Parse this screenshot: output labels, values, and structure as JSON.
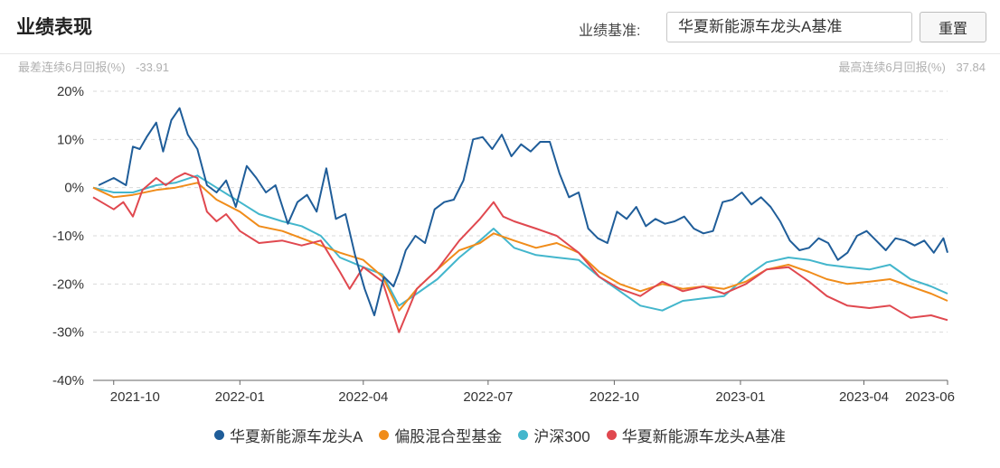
{
  "header": {
    "title": "业绩表现",
    "benchmark_label": "业绩基准:",
    "benchmark_value": "华夏新能源车龙头A基准",
    "reset_label": "重置"
  },
  "stats": {
    "worst_label": "最差连续6月回报(%)",
    "worst_value": "-33.91",
    "best_label": "最高连续6月回报(%)",
    "best_value": "37.84"
  },
  "chart_data": {
    "type": "line",
    "ylim": [
      -40,
      20
    ],
    "y_ticks": [
      20,
      10,
      0,
      -10,
      -20,
      -30,
      -40
    ],
    "y_tick_labels": [
      "20%",
      "10%",
      "0%",
      "-10%",
      "-20%",
      "-30%",
      "-40%"
    ],
    "xlim": [
      "2021-09-16",
      "2023-06-01"
    ],
    "x_ticks": [
      "2021-10-01",
      "2022-01-01",
      "2022-04-01",
      "2022-07-01",
      "2022-10-01",
      "2023-01-01",
      "2023-04-01",
      "2023-06-01"
    ],
    "x_tick_labels": [
      "2021-10",
      "2022-01",
      "2022-04",
      "2022-07",
      "2022-10",
      "2023-01",
      "2023-04",
      "2023-06"
    ],
    "grid": "horizontal-dashed",
    "legend_position": "bottom-center",
    "series": [
      {
        "name": "华夏新能源车龙头A",
        "color": "#1f5d99",
        "x": [
          "2021-09-20",
          "2021-10-01",
          "2021-10-10",
          "2021-10-15",
          "2021-10-20",
          "2021-10-25",
          "2021-11-01",
          "2021-11-06",
          "2021-11-12",
          "2021-11-18",
          "2021-11-24",
          "2021-12-01",
          "2021-12-08",
          "2021-12-15",
          "2021-12-22",
          "2021-12-29",
          "2022-01-06",
          "2022-01-13",
          "2022-01-20",
          "2022-01-27",
          "2022-02-05",
          "2022-02-12",
          "2022-02-19",
          "2022-02-26",
          "2022-03-05",
          "2022-03-12",
          "2022-03-19",
          "2022-03-26",
          "2022-04-02",
          "2022-04-09",
          "2022-04-16",
          "2022-04-23",
          "2022-04-27",
          "2022-05-02",
          "2022-05-09",
          "2022-05-16",
          "2022-05-23",
          "2022-05-30",
          "2022-06-06",
          "2022-06-13",
          "2022-06-20",
          "2022-06-27",
          "2022-07-04",
          "2022-07-11",
          "2022-07-18",
          "2022-07-25",
          "2022-08-01",
          "2022-08-08",
          "2022-08-15",
          "2022-08-22",
          "2022-08-29",
          "2022-09-05",
          "2022-09-12",
          "2022-09-19",
          "2022-09-26",
          "2022-10-03",
          "2022-10-10",
          "2022-10-17",
          "2022-10-24",
          "2022-10-31",
          "2022-11-07",
          "2022-11-14",
          "2022-11-21",
          "2022-11-28",
          "2022-12-05",
          "2022-12-12",
          "2022-12-19",
          "2022-12-26",
          "2023-01-02",
          "2023-01-09",
          "2023-01-16",
          "2023-01-23",
          "2023-01-30",
          "2023-02-06",
          "2023-02-13",
          "2023-02-20",
          "2023-02-27",
          "2023-03-06",
          "2023-03-13",
          "2023-03-20",
          "2023-03-27",
          "2023-04-03",
          "2023-04-10",
          "2023-04-17",
          "2023-04-24",
          "2023-05-01",
          "2023-05-08",
          "2023-05-15",
          "2023-05-22",
          "2023-05-29",
          "2023-06-01"
        ],
        "values": [
          0.5,
          2.0,
          0.5,
          8.5,
          8.0,
          10.5,
          13.5,
          7.5,
          14.0,
          16.5,
          11.0,
          8.0,
          0.5,
          -1.0,
          1.5,
          -4.0,
          4.5,
          2.0,
          -1.0,
          0.5,
          -7.5,
          -3.0,
          -1.5,
          -5.0,
          4.0,
          -6.5,
          -5.5,
          -14.0,
          -21.0,
          -26.5,
          -18.5,
          -20.5,
          -17.5,
          -13.0,
          -10.0,
          -11.5,
          -4.5,
          -3.0,
          -2.5,
          1.5,
          10.0,
          10.5,
          8.0,
          11.0,
          6.5,
          9.0,
          7.5,
          9.5,
          9.5,
          3.0,
          -2.0,
          -1.0,
          -8.5,
          -10.5,
          -11.5,
          -5.0,
          -6.5,
          -4.0,
          -8.0,
          -6.5,
          -7.5,
          -7.0,
          -6.0,
          -8.5,
          -9.5,
          -9.0,
          -3.0,
          -2.5,
          -1.0,
          -3.5,
          -2.0,
          -4.0,
          -7.0,
          -11.0,
          -13.0,
          -12.5,
          -10.5,
          -11.5,
          -15.0,
          -13.5,
          -10.0,
          -9.0,
          -11.0,
          -13.0,
          -10.5,
          -11.0,
          -12.0,
          -11.0,
          -13.5,
          -10.5,
          -13.5
        ]
      },
      {
        "name": "偏股混合型基金",
        "color": "#f08c1a",
        "x": [
          "2021-09-16",
          "2021-10-01",
          "2021-10-15",
          "2021-11-01",
          "2021-11-15",
          "2021-12-01",
          "2021-12-15",
          "2022-01-01",
          "2022-01-15",
          "2022-02-01",
          "2022-02-15",
          "2022-03-01",
          "2022-03-15",
          "2022-04-01",
          "2022-04-15",
          "2022-04-27",
          "2022-05-10",
          "2022-05-25",
          "2022-06-10",
          "2022-06-25",
          "2022-07-05",
          "2022-07-20",
          "2022-08-05",
          "2022-08-20",
          "2022-09-05",
          "2022-09-20",
          "2022-10-05",
          "2022-10-20",
          "2022-11-05",
          "2022-11-20",
          "2022-12-05",
          "2022-12-20",
          "2023-01-05",
          "2023-01-20",
          "2023-02-05",
          "2023-02-20",
          "2023-03-05",
          "2023-03-20",
          "2023-04-05",
          "2023-04-20",
          "2023-05-05",
          "2023-05-20",
          "2023-06-01"
        ],
        "values": [
          0.0,
          -2.0,
          -1.5,
          -0.5,
          0.0,
          1.0,
          -2.5,
          -5.0,
          -8.0,
          -9.0,
          -10.5,
          -12.0,
          -13.5,
          -15.0,
          -18.5,
          -25.5,
          -21.0,
          -17.0,
          -13.0,
          -11.5,
          -9.5,
          -11.0,
          -12.5,
          -11.5,
          -13.5,
          -17.5,
          -20.0,
          -21.5,
          -20.0,
          -21.0,
          -20.5,
          -21.0,
          -19.5,
          -17.0,
          -16.0,
          -17.5,
          -19.0,
          -20.0,
          -19.5,
          -19.0,
          -20.5,
          -22.0,
          -23.5
        ]
      },
      {
        "name": "沪深300",
        "color": "#43b6cc",
        "x": [
          "2021-09-16",
          "2021-10-01",
          "2021-10-15",
          "2021-11-01",
          "2021-11-15",
          "2021-12-01",
          "2021-12-15",
          "2022-01-01",
          "2022-01-15",
          "2022-02-01",
          "2022-02-15",
          "2022-03-01",
          "2022-03-15",
          "2022-04-01",
          "2022-04-15",
          "2022-04-27",
          "2022-05-10",
          "2022-05-25",
          "2022-06-10",
          "2022-06-25",
          "2022-07-05",
          "2022-07-20",
          "2022-08-05",
          "2022-08-20",
          "2022-09-05",
          "2022-09-20",
          "2022-10-05",
          "2022-10-20",
          "2022-11-05",
          "2022-11-20",
          "2022-12-05",
          "2022-12-20",
          "2023-01-05",
          "2023-01-20",
          "2023-02-05",
          "2023-02-20",
          "2023-03-05",
          "2023-03-20",
          "2023-04-05",
          "2023-04-20",
          "2023-05-05",
          "2023-05-20",
          "2023-06-01"
        ],
        "values": [
          0.0,
          -1.0,
          -1.0,
          0.5,
          1.0,
          2.5,
          0.0,
          -3.0,
          -5.5,
          -7.0,
          -8.0,
          -10.0,
          -14.5,
          -16.5,
          -18.0,
          -24.5,
          -22.0,
          -19.0,
          -14.5,
          -11.0,
          -8.5,
          -12.5,
          -14.0,
          -14.5,
          -15.0,
          -18.5,
          -21.5,
          -24.5,
          -25.5,
          -23.5,
          -23.0,
          -22.5,
          -18.5,
          -15.5,
          -14.5,
          -15.0,
          -16.0,
          -16.5,
          -17.0,
          -16.0,
          -19.0,
          -20.5,
          -22.0
        ]
      },
      {
        "name": "华夏新能源车龙头A基准",
        "color": "#e0484f",
        "x": [
          "2021-09-16",
          "2021-10-01",
          "2021-10-08",
          "2021-10-15",
          "2021-10-22",
          "2021-11-01",
          "2021-11-08",
          "2021-11-15",
          "2021-11-22",
          "2021-12-01",
          "2021-12-08",
          "2021-12-15",
          "2021-12-22",
          "2022-01-01",
          "2022-01-15",
          "2022-02-01",
          "2022-02-15",
          "2022-03-01",
          "2022-03-15",
          "2022-03-22",
          "2022-04-01",
          "2022-04-15",
          "2022-04-27",
          "2022-05-10",
          "2022-05-25",
          "2022-06-10",
          "2022-06-25",
          "2022-07-05",
          "2022-07-12",
          "2022-07-20",
          "2022-08-05",
          "2022-08-20",
          "2022-09-05",
          "2022-09-20",
          "2022-10-05",
          "2022-10-20",
          "2022-11-05",
          "2022-11-20",
          "2022-12-05",
          "2022-12-20",
          "2023-01-05",
          "2023-01-20",
          "2023-02-05",
          "2023-02-20",
          "2023-03-05",
          "2023-03-20",
          "2023-04-05",
          "2023-04-20",
          "2023-05-05",
          "2023-05-20",
          "2023-06-01"
        ],
        "values": [
          -2.0,
          -4.5,
          -3.0,
          -6.0,
          -0.5,
          2.0,
          0.5,
          2.0,
          3.0,
          2.0,
          -5.0,
          -7.0,
          -5.5,
          -9.0,
          -11.5,
          -11.0,
          -12.0,
          -11.0,
          -17.5,
          -21.0,
          -16.5,
          -19.5,
          -30.0,
          -21.0,
          -17.0,
          -11.0,
          -6.5,
          -3.0,
          -6.0,
          -7.0,
          -8.5,
          -10.0,
          -13.5,
          -18.5,
          -21.0,
          -22.5,
          -19.5,
          -21.5,
          -20.5,
          -22.0,
          -20.0,
          -17.0,
          -16.5,
          -19.5,
          -22.5,
          -24.5,
          -25.0,
          -24.5,
          -27.0,
          -26.5,
          -27.5
        ]
      }
    ]
  }
}
